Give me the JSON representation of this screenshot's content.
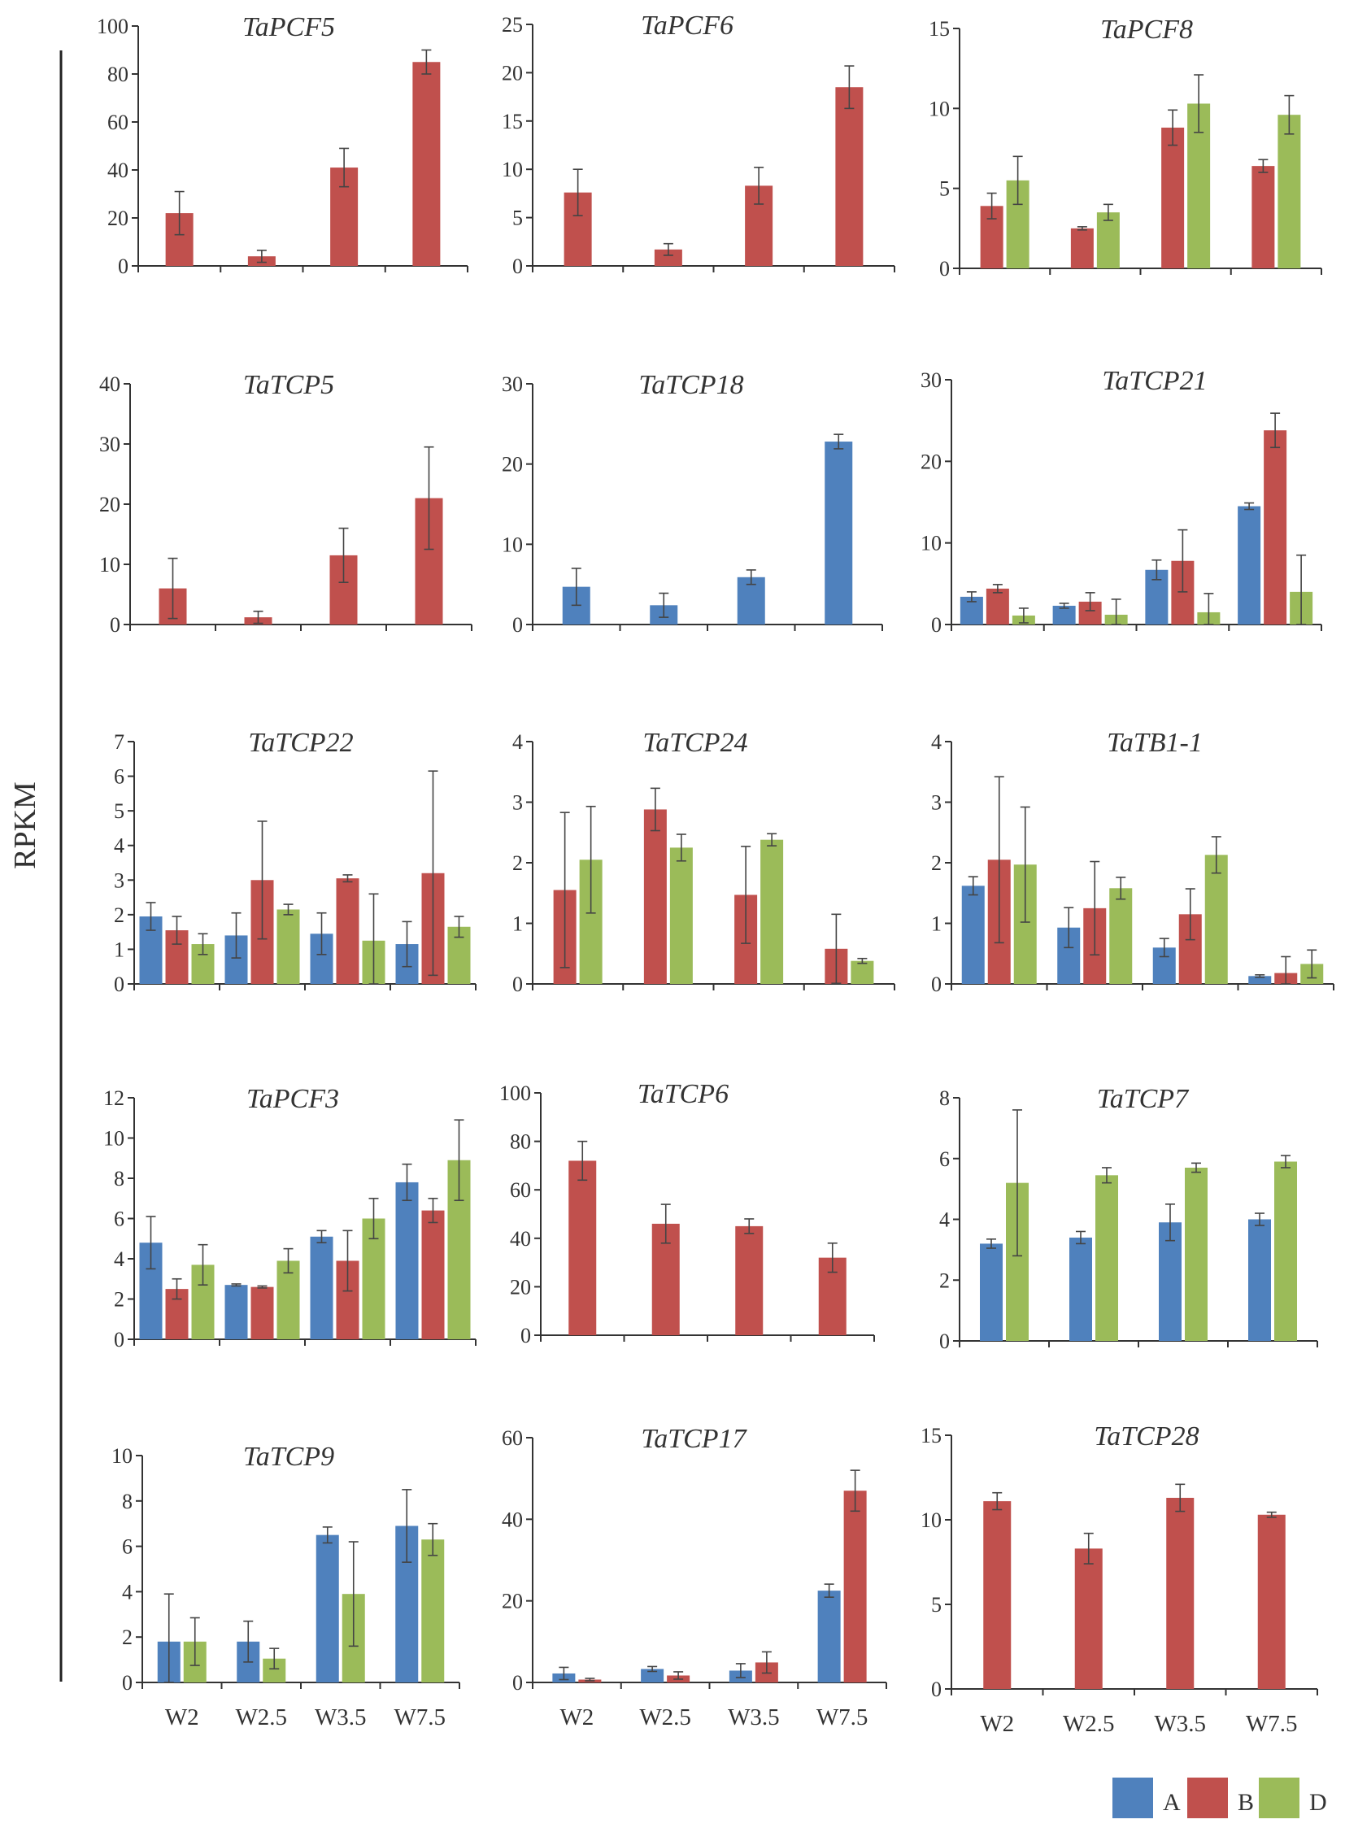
{
  "figure": {
    "ylabel": "RPKM",
    "legend": [
      {
        "name": "A",
        "color": "#4f81bd"
      },
      {
        "name": "B",
        "color": "#c0504d"
      },
      {
        "name": "D",
        "color": "#9bbb59"
      }
    ]
  },
  "chart_data": [
    {
      "type": "bar",
      "title": "TaPCF5",
      "categories": [
        "W2",
        "W2.5",
        "W3.5",
        "W7.5"
      ],
      "ylim": [
        0,
        100
      ],
      "yticks": [
        0,
        20,
        40,
        60,
        80,
        100
      ],
      "series": [
        {
          "name": "B",
          "color": "#c0504d",
          "values": [
            22,
            4,
            41,
            85
          ],
          "errors": [
            9,
            2.5,
            8,
            5
          ]
        }
      ]
    },
    {
      "type": "bar",
      "title": "TaPCF6",
      "categories": [
        "W2",
        "W2.5",
        "W3.5",
        "W7.5"
      ],
      "ylim": [
        0,
        25
      ],
      "yticks": [
        0,
        5,
        10,
        15,
        20,
        25
      ],
      "series": [
        {
          "name": "B",
          "color": "#c0504d",
          "values": [
            7.6,
            1.7,
            8.3,
            18.5
          ],
          "errors": [
            2.4,
            0.6,
            1.9,
            2.2
          ]
        }
      ]
    },
    {
      "type": "bar",
      "title": "TaPCF8",
      "categories": [
        "W2",
        "W2.5",
        "W3.5",
        "W7.5"
      ],
      "ylim": [
        0,
        15
      ],
      "yticks": [
        0,
        5,
        10,
        15
      ],
      "series": [
        {
          "name": "B",
          "color": "#c0504d",
          "values": [
            3.9,
            2.5,
            8.8,
            6.4
          ],
          "errors": [
            0.8,
            0.1,
            1.1,
            0.4
          ]
        },
        {
          "name": "D",
          "color": "#9bbb59",
          "values": [
            5.5,
            3.5,
            10.3,
            9.6
          ],
          "errors": [
            1.5,
            0.5,
            1.8,
            1.2
          ]
        }
      ]
    },
    {
      "type": "bar",
      "title": "TaTCP5",
      "categories": [
        "W2",
        "W2.5",
        "W3.5",
        "W7.5"
      ],
      "ylim": [
        0,
        40
      ],
      "yticks": [
        0,
        10,
        20,
        30,
        40
      ],
      "series": [
        {
          "name": "B",
          "color": "#c0504d",
          "values": [
            6,
            1.2,
            11.5,
            21
          ],
          "errors": [
            5,
            1,
            4.5,
            8.5
          ]
        }
      ]
    },
    {
      "type": "bar",
      "title": "TaTCP18",
      "categories": [
        "W2",
        "W2.5",
        "W3.5",
        "W7.5"
      ],
      "ylim": [
        0,
        30
      ],
      "yticks": [
        0,
        10,
        20,
        30
      ],
      "series": [
        {
          "name": "A",
          "color": "#4f81bd",
          "values": [
            4.7,
            2.4,
            5.9,
            22.8
          ],
          "errors": [
            2.3,
            1.5,
            0.9,
            0.9
          ]
        }
      ]
    },
    {
      "type": "bar",
      "title": "TaTCP21",
      "categories": [
        "W2",
        "W2.5",
        "W3.5",
        "W7.5"
      ],
      "ylim": [
        0,
        30
      ],
      "yticks": [
        0,
        10,
        20,
        30
      ],
      "series": [
        {
          "name": "A",
          "color": "#4f81bd",
          "values": [
            3.4,
            2.3,
            6.7,
            14.5
          ],
          "errors": [
            0.6,
            0.3,
            1.2,
            0.4
          ]
        },
        {
          "name": "B",
          "color": "#c0504d",
          "values": [
            4.4,
            2.8,
            7.8,
            23.8
          ],
          "errors": [
            0.5,
            1.1,
            3.8,
            2.1
          ]
        },
        {
          "name": "D",
          "color": "#9bbb59",
          "values": [
            1.1,
            1.2,
            1.5,
            4
          ],
          "errors": [
            0.9,
            1.9,
            2.3,
            4.5
          ]
        }
      ]
    },
    {
      "type": "bar",
      "title": "TaTCP22",
      "categories": [
        "W2",
        "W2.5",
        "W3.5",
        "W7.5"
      ],
      "ylim": [
        0,
        7
      ],
      "yticks": [
        0,
        1,
        2,
        3,
        4,
        5,
        6,
        7
      ],
      "series": [
        {
          "name": "A",
          "color": "#4f81bd",
          "values": [
            1.95,
            1.4,
            1.45,
            1.15
          ],
          "errors": [
            0.4,
            0.65,
            0.6,
            0.65
          ]
        },
        {
          "name": "B",
          "color": "#c0504d",
          "values": [
            1.55,
            3,
            3.05,
            3.2
          ],
          "errors": [
            0.4,
            1.7,
            0.1,
            2.95
          ]
        },
        {
          "name": "D",
          "color": "#9bbb59",
          "values": [
            1.15,
            2.15,
            1.25,
            1.65
          ],
          "errors": [
            0.3,
            0.15,
            1.35,
            0.3
          ]
        }
      ]
    },
    {
      "type": "bar",
      "title": "TaTCP24",
      "categories": [
        "W2",
        "W2.5",
        "W3.5",
        "W7.5"
      ],
      "ylim": [
        0,
        4
      ],
      "yticks": [
        0,
        1,
        2,
        3,
        4
      ],
      "series": [
        {
          "name": "B",
          "color": "#c0504d",
          "values": [
            1.55,
            2.88,
            1.47,
            0.58
          ],
          "errors": [
            1.28,
            0.35,
            0.8,
            0.57
          ]
        },
        {
          "name": "D",
          "color": "#9bbb59",
          "values": [
            2.05,
            2.25,
            2.38,
            0.38
          ],
          "errors": [
            0.88,
            0.22,
            0.1,
            0.04
          ]
        }
      ]
    },
    {
      "type": "bar",
      "title": "TaTB1-1",
      "categories": [
        "W2",
        "W2.5",
        "W3.5",
        "W7.5"
      ],
      "ylim": [
        0,
        4
      ],
      "yticks": [
        0,
        1,
        2,
        3,
        4
      ],
      "series": [
        {
          "name": "A",
          "color": "#4f81bd",
          "values": [
            1.62,
            0.93,
            0.6,
            0.13
          ],
          "errors": [
            0.15,
            0.33,
            0.15,
            0.02
          ]
        },
        {
          "name": "B",
          "color": "#c0504d",
          "values": [
            2.05,
            1.25,
            1.15,
            0.18
          ],
          "errors": [
            1.37,
            0.77,
            0.42,
            0.27
          ]
        },
        {
          "name": "D",
          "color": "#9bbb59",
          "values": [
            1.97,
            1.58,
            2.13,
            0.33
          ],
          "errors": [
            0.95,
            0.18,
            0.3,
            0.23
          ]
        }
      ]
    },
    {
      "type": "bar",
      "title": "TaPCF3",
      "categories": [
        "W2",
        "W2.5",
        "W3.5",
        "W7.5"
      ],
      "ylim": [
        0,
        12
      ],
      "yticks": [
        0,
        2,
        4,
        6,
        8,
        10,
        12
      ],
      "series": [
        {
          "name": "A",
          "color": "#4f81bd",
          "values": [
            4.8,
            2.7,
            5.1,
            7.8
          ],
          "errors": [
            1.3,
            0.05,
            0.3,
            0.9
          ]
        },
        {
          "name": "B",
          "color": "#c0504d",
          "values": [
            2.5,
            2.6,
            3.9,
            6.4
          ],
          "errors": [
            0.5,
            0.05,
            1.5,
            0.6
          ]
        },
        {
          "name": "D",
          "color": "#9bbb59",
          "values": [
            3.7,
            3.9,
            6,
            8.9
          ],
          "errors": [
            1,
            0.6,
            1,
            2
          ]
        }
      ]
    },
    {
      "type": "bar",
      "title": "TaTCP6",
      "categories": [
        "W2",
        "W2.5",
        "W3.5",
        "W7.5"
      ],
      "ylim": [
        0,
        100
      ],
      "yticks": [
        0,
        20,
        40,
        60,
        80,
        100
      ],
      "series": [
        {
          "name": "B",
          "color": "#c0504d",
          "values": [
            72,
            46,
            45,
            32
          ],
          "errors": [
            8,
            8,
            3,
            6
          ]
        }
      ]
    },
    {
      "type": "bar",
      "title": "TaTCP7",
      "categories": [
        "W2",
        "W2.5",
        "W3.5",
        "W7.5"
      ],
      "ylim": [
        0,
        8
      ],
      "yticks": [
        0,
        2,
        4,
        6,
        8
      ],
      "series": [
        {
          "name": "A",
          "color": "#4f81bd",
          "values": [
            3.2,
            3.4,
            3.9,
            4
          ],
          "errors": [
            0.15,
            0.2,
            0.6,
            0.2
          ]
        },
        {
          "name": "D",
          "color": "#9bbb59",
          "values": [
            5.2,
            5.45,
            5.7,
            5.9
          ],
          "errors": [
            2.4,
            0.25,
            0.15,
            0.2
          ]
        }
      ]
    },
    {
      "type": "bar",
      "title": "TaTCP9",
      "categories": [
        "W2",
        "W2.5",
        "W3.5",
        "W7.5"
      ],
      "ylim": [
        0,
        10
      ],
      "yticks": [
        0,
        2,
        4,
        6,
        8,
        10
      ],
      "series": [
        {
          "name": "A",
          "color": "#4f81bd",
          "values": [
            1.8,
            1.8,
            6.5,
            6.9
          ],
          "errors": [
            2.1,
            0.9,
            0.35,
            1.6
          ]
        },
        {
          "name": "D",
          "color": "#9bbb59",
          "values": [
            1.8,
            1.05,
            3.9,
            6.3
          ],
          "errors": [
            1.05,
            0.45,
            2.3,
            0.7
          ]
        }
      ]
    },
    {
      "type": "bar",
      "title": "TaTCP17",
      "categories": [
        "W2",
        "W2.5",
        "W3.5",
        "W7.5"
      ],
      "ylim": [
        0,
        60
      ],
      "yticks": [
        0,
        20,
        40,
        60
      ],
      "series": [
        {
          "name": "A",
          "color": "#4f81bd",
          "values": [
            2.2,
            3.3,
            2.9,
            22.5
          ],
          "errors": [
            1.5,
            0.6,
            1.7,
            1.6
          ]
        },
        {
          "name": "B",
          "color": "#c0504d",
          "values": [
            0.7,
            1.7,
            4.9,
            47
          ],
          "errors": [
            0.3,
            0.9,
            2.6,
            5
          ]
        }
      ]
    },
    {
      "type": "bar",
      "title": "TaTCP28",
      "categories": [
        "W2",
        "W2.5",
        "W3.5",
        "W7.5"
      ],
      "ylim": [
        0,
        15
      ],
      "yticks": [
        0,
        5,
        10,
        15
      ],
      "series": [
        {
          "name": "B",
          "color": "#c0504d",
          "values": [
            11.1,
            8.3,
            11.3,
            10.3
          ],
          "errors": [
            0.5,
            0.9,
            0.8,
            0.15
          ]
        }
      ]
    }
  ]
}
